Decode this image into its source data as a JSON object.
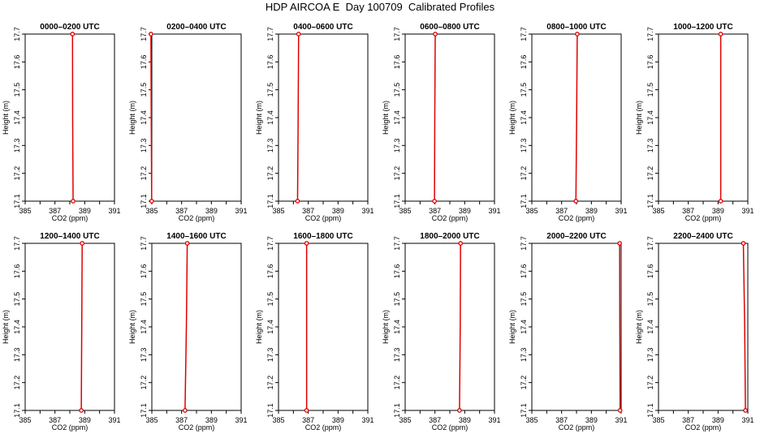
{
  "figure": {
    "title": "HDP AIRCOA E  Day 100709  Calibrated Profiles"
  },
  "colors": {
    "profile": "#e00000",
    "axis": "#000000",
    "background": "#ffffff"
  },
  "chart_data": [
    {
      "type": "line",
      "title": "0000–0200 UTC",
      "xlabel": "CO2 (ppm)",
      "ylabel": "Height (m)",
      "xlim": [
        385,
        391
      ],
      "ylim": [
        17.1,
        17.7
      ],
      "xticks": [
        385,
        387,
        389,
        391
      ],
      "yticks": [
        17.1,
        17.2,
        17.3,
        17.4,
        17.5,
        17.6,
        17.7
      ],
      "grid": false,
      "series": [
        {
          "x": [
            388.22,
            388.19,
            388.18
          ],
          "y": [
            17.1,
            17.4,
            17.7
          ]
        }
      ]
    },
    {
      "type": "line",
      "title": "0200–0400 UTC",
      "xlabel": "CO2 (ppm)",
      "ylabel": "Height (m)",
      "xlim": [
        385,
        391
      ],
      "ylim": [
        17.1,
        17.7
      ],
      "xticks": [
        385,
        387,
        389,
        391
      ],
      "yticks": [
        17.1,
        17.2,
        17.3,
        17.4,
        17.5,
        17.6,
        17.7
      ],
      "grid": false,
      "series": [
        {
          "x": [
            384.99,
            384.96,
            384.94
          ],
          "y": [
            17.1,
            17.4,
            17.7
          ]
        }
      ]
    },
    {
      "type": "line",
      "title": "0400–0600 UTC",
      "xlabel": "CO2 (ppm)",
      "ylabel": "Height (m)",
      "xlim": [
        385,
        391
      ],
      "ylim": [
        17.1,
        17.7
      ],
      "xticks": [
        385,
        387,
        389,
        391
      ],
      "yticks": [
        17.1,
        17.2,
        17.3,
        17.4,
        17.5,
        17.6,
        17.7
      ],
      "grid": false,
      "series": [
        {
          "x": [
            386.28,
            386.32,
            386.35
          ],
          "y": [
            17.1,
            17.4,
            17.7
          ]
        }
      ]
    },
    {
      "type": "line",
      "title": "0600–0800 UTC",
      "xlabel": "CO2 (ppm)",
      "ylabel": "Height (m)",
      "xlim": [
        385,
        391
      ],
      "ylim": [
        17.1,
        17.7
      ],
      "xticks": [
        385,
        387,
        389,
        391
      ],
      "yticks": [
        17.1,
        17.2,
        17.3,
        17.4,
        17.5,
        17.6,
        17.7
      ],
      "grid": false,
      "series": [
        {
          "x": [
            386.97,
            386.99,
            387.02
          ],
          "y": [
            17.1,
            17.4,
            17.7
          ]
        }
      ]
    },
    {
      "type": "line",
      "title": "0800–1000 UTC",
      "xlabel": "CO2 (ppm)",
      "ylabel": "Height (m)",
      "xlim": [
        385,
        391
      ],
      "ylim": [
        17.1,
        17.7
      ],
      "xticks": [
        385,
        387,
        389,
        391
      ],
      "yticks": [
        17.1,
        17.2,
        17.3,
        17.4,
        17.5,
        17.6,
        17.7
      ],
      "grid": false,
      "series": [
        {
          "x": [
            387.96,
            388.01,
            388.05
          ],
          "y": [
            17.1,
            17.4,
            17.7
          ]
        }
      ]
    },
    {
      "type": "line",
      "title": "1000–1200 UTC",
      "xlabel": "CO2 (ppm)",
      "ylabel": "Height (m)",
      "xlim": [
        385,
        391
      ],
      "ylim": [
        17.1,
        17.7
      ],
      "xticks": [
        385,
        387,
        389,
        391
      ],
      "yticks": [
        17.1,
        17.2,
        17.3,
        17.4,
        17.5,
        17.6,
        17.7
      ],
      "grid": false,
      "series": [
        {
          "x": [
            389.18,
            389.18,
            389.18
          ],
          "y": [
            17.1,
            17.4,
            17.7
          ]
        }
      ]
    },
    {
      "type": "line",
      "title": "1200–1400 UTC",
      "xlabel": "CO2 (ppm)",
      "ylabel": "Height (m)",
      "xlim": [
        385,
        391
      ],
      "ylim": [
        17.1,
        17.7
      ],
      "xticks": [
        385,
        387,
        389,
        391
      ],
      "yticks": [
        17.1,
        17.2,
        17.3,
        17.4,
        17.5,
        17.6,
        17.7
      ],
      "grid": false,
      "series": [
        {
          "x": [
            388.77,
            388.8,
            388.83
          ],
          "y": [
            17.1,
            17.4,
            17.7
          ]
        }
      ]
    },
    {
      "type": "line",
      "title": "1400–1600 UTC",
      "xlabel": "CO2 (ppm)",
      "ylabel": "Height (m)",
      "xlim": [
        385,
        391
      ],
      "ylim": [
        17.1,
        17.7
      ],
      "xticks": [
        385,
        387,
        389,
        391
      ],
      "yticks": [
        17.1,
        17.2,
        17.3,
        17.4,
        17.5,
        17.6,
        17.7
      ],
      "grid": false,
      "series": [
        {
          "x": [
            387.23,
            387.32,
            387.38
          ],
          "y": [
            17.1,
            17.4,
            17.7
          ]
        }
      ]
    },
    {
      "type": "line",
      "title": "1600–1800 UTC",
      "xlabel": "CO2 (ppm)",
      "ylabel": "Height (m)",
      "xlim": [
        385,
        391
      ],
      "ylim": [
        17.1,
        17.7
      ],
      "xticks": [
        385,
        387,
        389,
        391
      ],
      "yticks": [
        17.1,
        17.2,
        17.3,
        17.4,
        17.5,
        17.6,
        17.7
      ],
      "grid": false,
      "series": [
        {
          "x": [
            386.89,
            386.89,
            386.89
          ],
          "y": [
            17.1,
            17.4,
            17.7
          ]
        }
      ]
    },
    {
      "type": "line",
      "title": "1800–2000 UTC",
      "xlabel": "CO2 (ppm)",
      "ylabel": "Height (m)",
      "xlim": [
        385,
        391
      ],
      "ylim": [
        17.1,
        17.7
      ],
      "xticks": [
        385,
        387,
        389,
        391
      ],
      "yticks": [
        17.1,
        17.2,
        17.3,
        17.4,
        17.5,
        17.6,
        17.7
      ],
      "grid": false,
      "series": [
        {
          "x": [
            388.65,
            388.7,
            388.72
          ],
          "y": [
            17.1,
            17.4,
            17.7
          ]
        }
      ]
    },
    {
      "type": "line",
      "title": "2000–2200 UTC",
      "xlabel": "CO2 (ppm)",
      "ylabel": "Height (m)",
      "xlim": [
        385,
        391
      ],
      "ylim": [
        17.1,
        17.7
      ],
      "xticks": [
        385,
        387,
        389,
        391
      ],
      "yticks": [
        17.1,
        17.2,
        17.3,
        17.4,
        17.5,
        17.6,
        17.7
      ],
      "grid": false,
      "series": [
        {
          "x": [
            390.93,
            390.91,
            390.9
          ],
          "y": [
            17.1,
            17.4,
            17.7
          ]
        }
      ]
    },
    {
      "type": "line",
      "title": "2200–2400 UTC",
      "xlabel": "CO2 (ppm)",
      "ylabel": "Height (m)",
      "xlim": [
        385,
        391
      ],
      "ylim": [
        17.1,
        17.7
      ],
      "xticks": [
        385,
        387,
        389,
        391
      ],
      "yticks": [
        17.1,
        17.2,
        17.3,
        17.4,
        17.5,
        17.6,
        17.7
      ],
      "grid": false,
      "series": [
        {
          "x": [
            390.84,
            390.79,
            390.7
          ],
          "y": [
            17.1,
            17.4,
            17.7
          ]
        }
      ]
    }
  ]
}
